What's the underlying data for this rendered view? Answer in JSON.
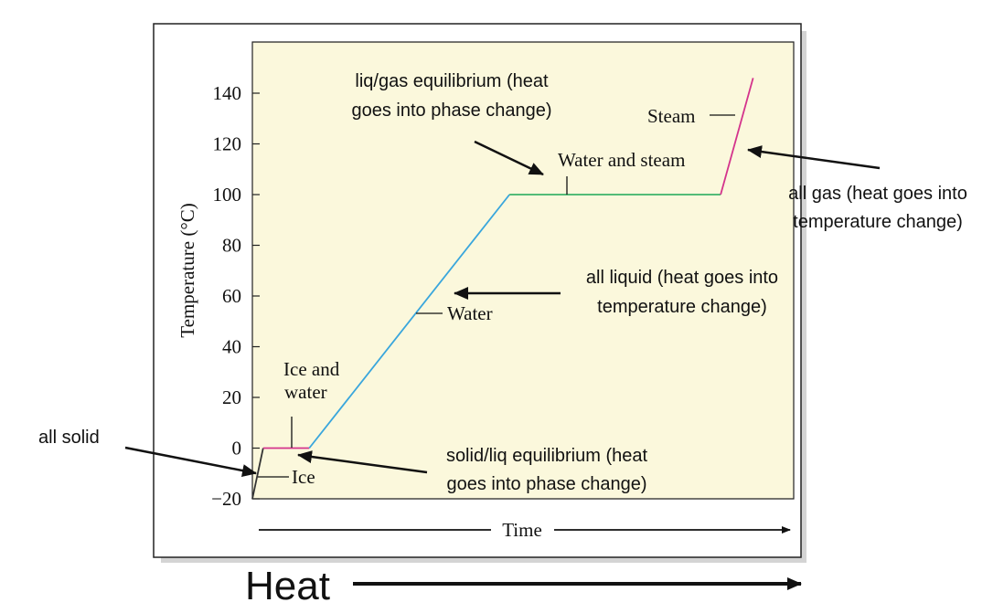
{
  "colors": {
    "plot_background": "#fbf8dc",
    "frame": "#222222",
    "ice_segment": "#d4348c",
    "melting_segment": "#d4348c",
    "water_segment": "#39a6dc",
    "boiling_segment": "#3bb36a",
    "steam_segment": "#d4348c",
    "text": "#111111"
  },
  "chart_data": {
    "type": "line",
    "ylabel": "Temperature (°C)",
    "xlabel": "Time",
    "ylim": [
      -20,
      150
    ],
    "yticks": [
      -20,
      0,
      20,
      40,
      60,
      80,
      100,
      120,
      140
    ],
    "xlim": [
      0,
      100
    ],
    "grid": false,
    "series": [
      {
        "segment": "ice",
        "x": [
          0,
          2
        ],
        "y": [
          -20,
          0
        ]
      },
      {
        "segment": "ice_and_water",
        "x": [
          2,
          10.5
        ],
        "y": [
          0,
          0
        ]
      },
      {
        "segment": "water",
        "x": [
          10.5,
          47.5
        ],
        "y": [
          0,
          100
        ]
      },
      {
        "segment": "water_and_steam",
        "x": [
          47.5,
          86.5
        ],
        "y": [
          100,
          100
        ]
      },
      {
        "segment": "steam",
        "x": [
          86.5,
          92.5
        ],
        "y": [
          100,
          146
        ]
      }
    ],
    "segment_labels": {
      "ice": "Ice",
      "ice_and_water": [
        "Ice and",
        "water"
      ],
      "water": "Water",
      "water_and_steam": "Water and steam",
      "steam": "Steam"
    }
  },
  "annotations": {
    "all_solid": "all solid",
    "solid_liq": [
      "solid/liq equilibrium (heat",
      "goes into phase change)"
    ],
    "all_liquid": [
      "all liquid (heat goes into",
      "temperature change)"
    ],
    "liq_gas": [
      "liq/gas equilibrium (heat",
      "goes into phase change)"
    ],
    "all_gas": [
      "all gas (heat goes into",
      "temperature change)"
    ]
  },
  "heat_label": "Heat"
}
